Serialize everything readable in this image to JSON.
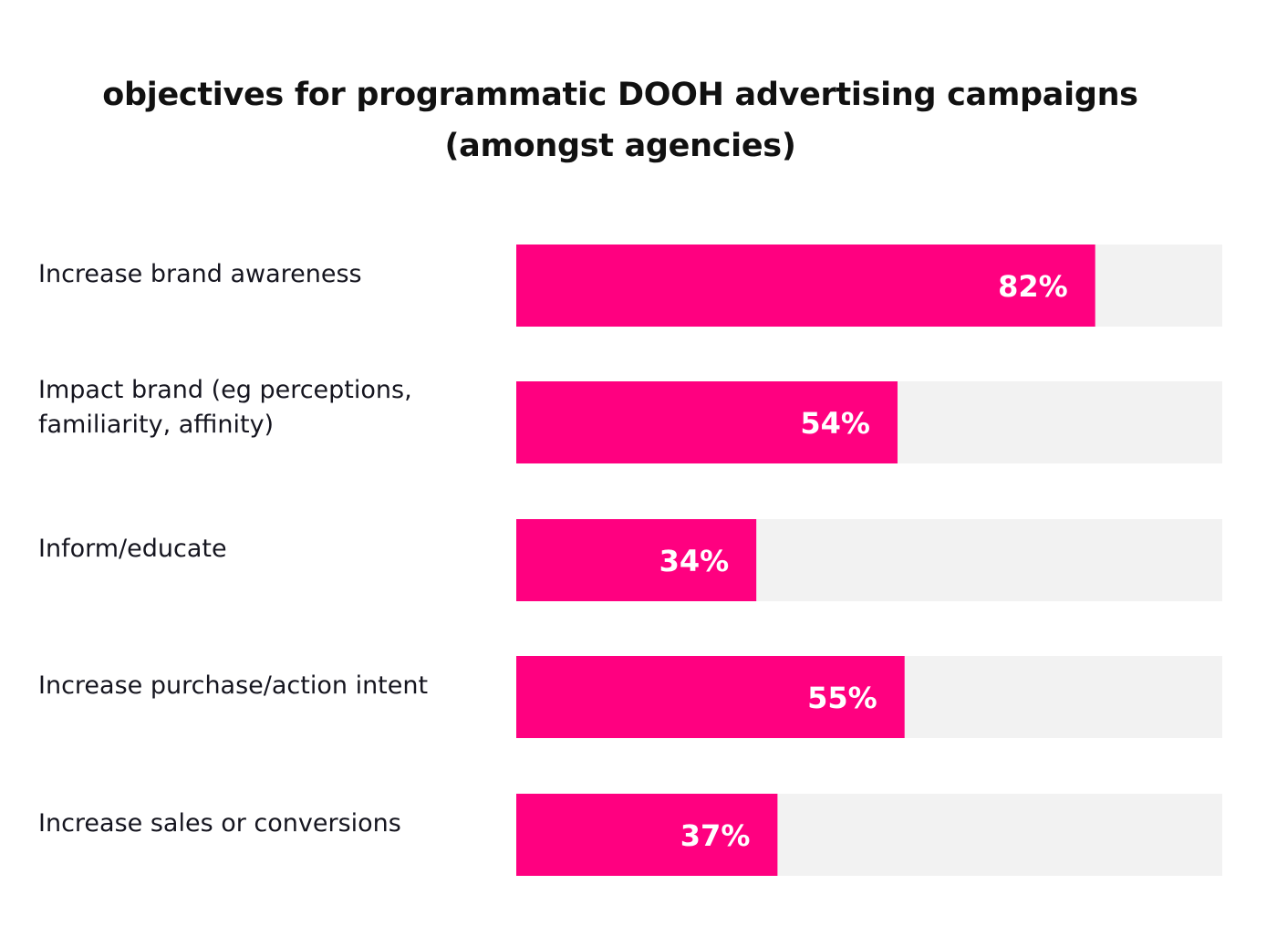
{
  "chart_data": {
    "type": "bar",
    "orientation": "horizontal",
    "title": "objectives for programmatic DOOH advertising campaigns",
    "subtitle": "(amongst agencies)",
    "categories": [
      [
        "Increase brand awareness"
      ],
      [
        "Impact brand (eg perceptions,",
        "familiarity, affinity)"
      ],
      [
        "Inform/educate"
      ],
      [
        "Increase purchase/action intent"
      ],
      [
        "Increase sales or conversions"
      ]
    ],
    "values": [
      82,
      54,
      34,
      55,
      37
    ],
    "value_labels": [
      "82%",
      "54%",
      "34%",
      "55%",
      "37%"
    ],
    "xlim": [
      0,
      100
    ],
    "grid": false,
    "legend": "none",
    "colors": {
      "bar": "#ff0080",
      "track": "#f2f2f2",
      "value_text": "#ffffff",
      "label_text": "#15151f"
    }
  }
}
